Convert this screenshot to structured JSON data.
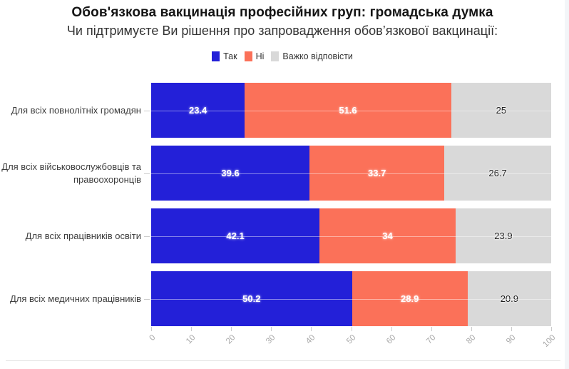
{
  "chart_data": {
    "type": "bar",
    "orientation": "horizontal",
    "stacked": true,
    "title": "Обов'язкова вакцинація професійних груп: громадська думка",
    "subtitle": "Чи підтримуєте Ви рішення про запровадження обов’язкової вакцинації:",
    "legend_position": "top",
    "legend": [
      {
        "label": "Так",
        "color": "#2320d8"
      },
      {
        "label": "Ні",
        "color": "#fb7159"
      },
      {
        "label": "Важко відповісти",
        "color": "#d9d9d9"
      }
    ],
    "categories": [
      "Для всіх повнолітніх громадян",
      "Для всіх військовослужбовців та правоохоронців",
      "Для всіх працівників освіти",
      "Для всіх медичних працівників"
    ],
    "series": [
      {
        "name": "Так",
        "color": "#2320d8",
        "label_style": "light",
        "values": [
          23.4,
          39.6,
          42.1,
          50.2
        ]
      },
      {
        "name": "Ні",
        "color": "#fb7159",
        "label_style": "light",
        "values": [
          51.6,
          33.7,
          34,
          28.9
        ]
      },
      {
        "name": "Важко відповісти",
        "color": "#d9d9d9",
        "label_style": "dark",
        "values": [
          25,
          26.7,
          23.9,
          20.9
        ]
      }
    ],
    "x_ticks": [
      0,
      10,
      20,
      30,
      40,
      50,
      60,
      70,
      80,
      90,
      100
    ],
    "xlim": [
      0,
      100
    ],
    "grid": "category-lines"
  },
  "page": {
    "card_background": "#ffffff",
    "outer_background": "#f3f5f8"
  }
}
